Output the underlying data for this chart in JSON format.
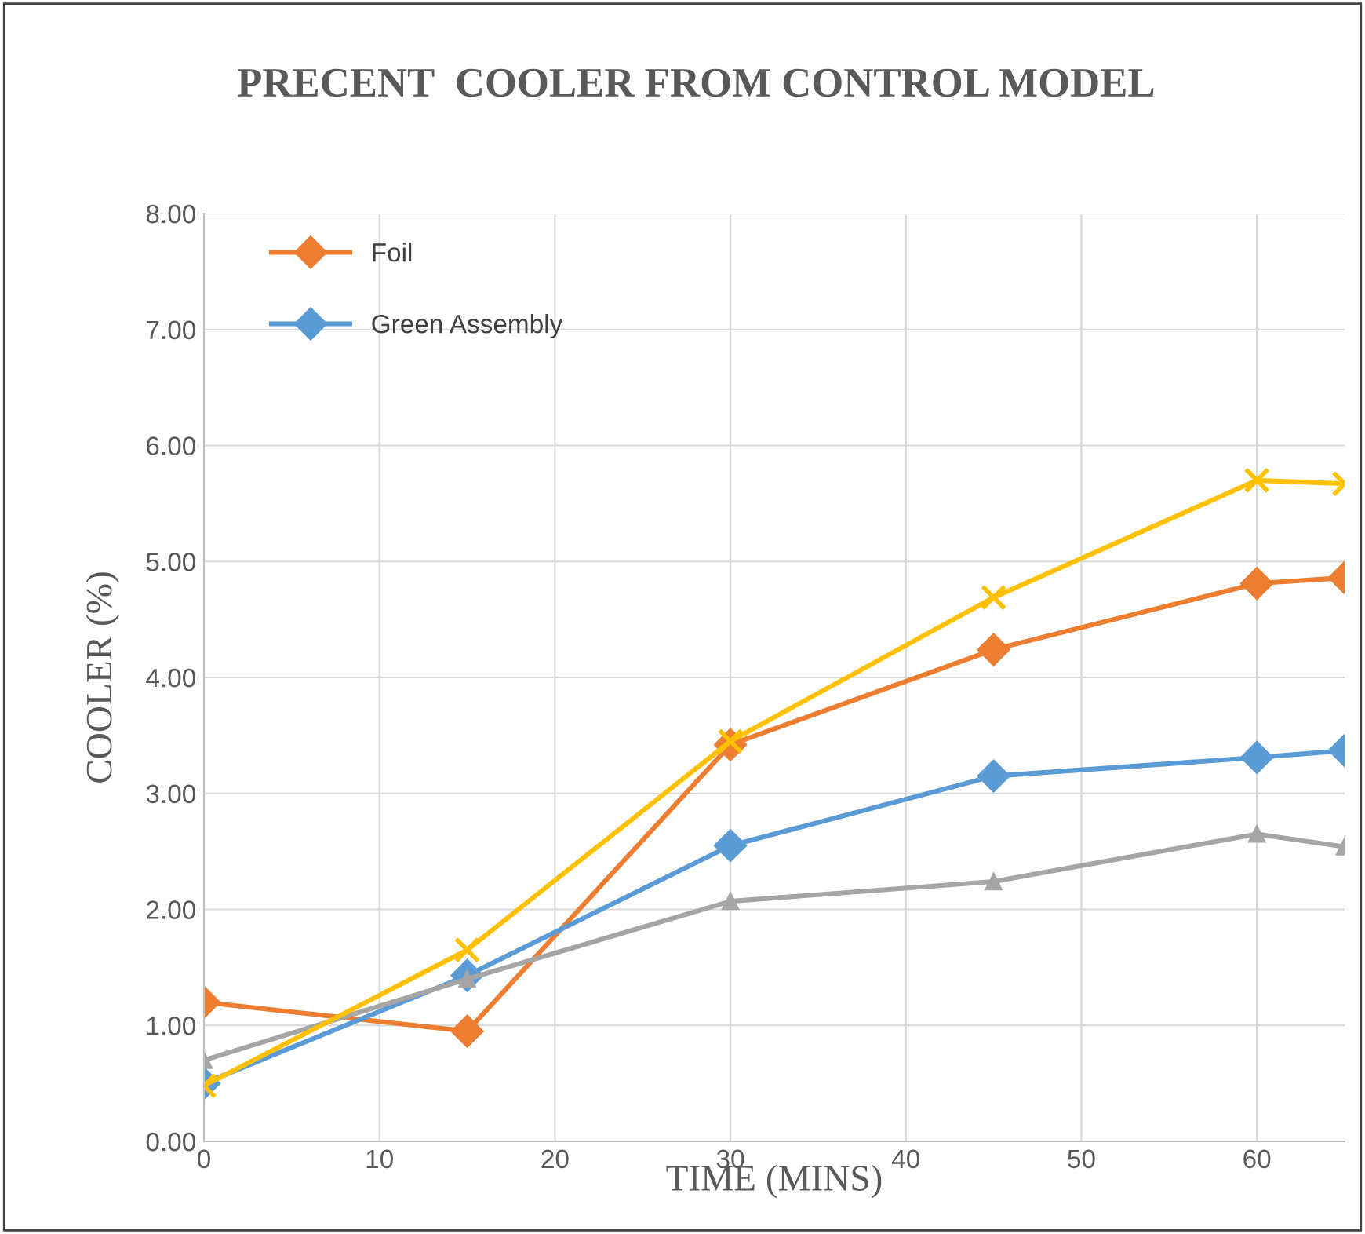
{
  "chart_data": {
    "type": "line",
    "title": "PRECENT  COOLER FROM CONTROL MODEL",
    "xlabel": "TIME (MINS)",
    "ylabel": "COOLER (%)",
    "x": [
      0,
      15,
      30,
      45,
      60,
      65
    ],
    "series": [
      {
        "name": "Foil",
        "color": "#ed7d31",
        "marker": "diamond",
        "values": [
          1.2,
          0.95,
          3.42,
          4.24,
          4.81,
          4.86
        ]
      },
      {
        "name": "Green Assembly",
        "color": "#5b9bd5",
        "marker": "diamond",
        "values": [
          0.5,
          1.43,
          2.55,
          3.15,
          3.31,
          3.37
        ]
      },
      {
        "color": "#a5a5a5",
        "marker": "triangle",
        "values": [
          0.7,
          1.4,
          2.07,
          2.24,
          2.65,
          2.54
        ]
      },
      {
        "color": "#ffc000",
        "marker": "cross",
        "values": [
          0.48,
          1.65,
          3.45,
          4.69,
          5.7,
          5.67
        ]
      }
    ],
    "xlim": [
      0,
      65
    ],
    "xticks": [
      0,
      10,
      20,
      30,
      40,
      50,
      60
    ],
    "ylim": [
      0,
      8
    ],
    "yticks": [
      {
        "value": 0,
        "label": "0.00"
      },
      {
        "value": 1,
        "label": "1.00"
      },
      {
        "value": 2,
        "label": "2.00"
      },
      {
        "value": 3,
        "label": "3.00"
      },
      {
        "value": 4,
        "label": "4.00"
      },
      {
        "value": 5,
        "label": "5.00"
      },
      {
        "value": 6,
        "label": "6.00"
      },
      {
        "value": 7,
        "label": "7.00"
      },
      {
        "value": 8,
        "label": "8.00"
      }
    ],
    "grid": true,
    "legend": "top left",
    "line_style": "solid"
  }
}
